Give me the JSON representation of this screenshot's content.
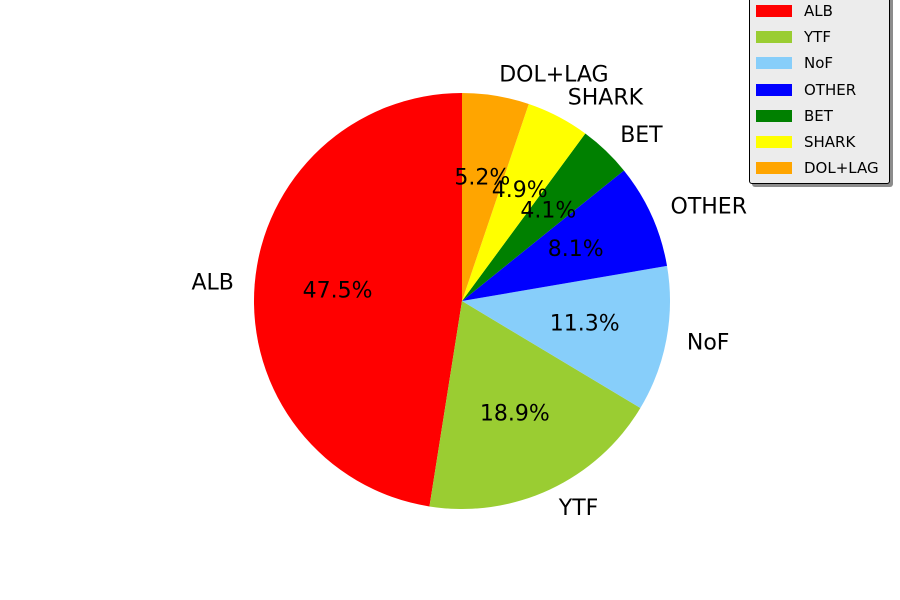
{
  "chart_data": {
    "type": "pie",
    "title": "",
    "start_angle_deg": 90,
    "direction": "counterclockwise",
    "slices": [
      {
        "label": "ALB",
        "value": 47.5,
        "pct_label": "47.5%",
        "color": "#ff0000"
      },
      {
        "label": "YTF",
        "value": 18.9,
        "pct_label": "18.9%",
        "color": "#9acd32"
      },
      {
        "label": "NoF",
        "value": 11.3,
        "pct_label": "11.3%",
        "color": "#87cefa"
      },
      {
        "label": "OTHER",
        "value": 8.1,
        "pct_label": "8.1%",
        "color": "#0000ff"
      },
      {
        "label": "BET",
        "value": 4.1,
        "pct_label": "4.1%",
        "color": "#008000"
      },
      {
        "label": "SHARK",
        "value": 4.9,
        "pct_label": "4.9%",
        "color": "#ffff00"
      },
      {
        "label": "DOL+LAG",
        "value": 5.2,
        "pct_label": "5.2%",
        "color": "#ffa500"
      }
    ],
    "legend": {
      "placement": "top-right",
      "entries": [
        "ALB",
        "YTF",
        "NoF",
        "OTHER",
        "BET",
        "SHARK",
        "DOL+LAG"
      ]
    }
  }
}
